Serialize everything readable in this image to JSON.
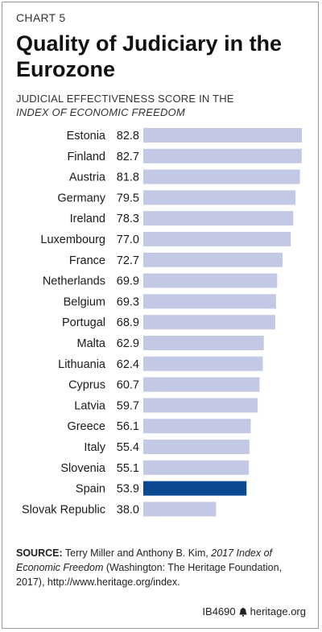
{
  "header": {
    "kicker": "CHART 5",
    "title": "Quality of Judiciary in the Eurozone",
    "subtitle_line1": "JUDICIAL EFFECTIVENESS SCORE IN THE",
    "subtitle_line2": "INDEX OF ECONOMIC FREEDOM"
  },
  "colors": {
    "bar": "#c3c9e4",
    "highlight": "#0b4a93",
    "text": "#1a1a1a"
  },
  "chart_data": {
    "type": "bar",
    "orientation": "horizontal",
    "title": "Quality of Judiciary in the Eurozone",
    "subtitle": "JUDICIAL EFFECTIVENESS SCORE IN THE INDEX OF ECONOMIC FREEDOM",
    "xlabel": "",
    "ylabel": "",
    "xlim": [
      0,
      82.8
    ],
    "grid": false,
    "highlight": "Spain",
    "categories": [
      "Estonia",
      "Finland",
      "Austria",
      "Germany",
      "Ireland",
      "Luxembourg",
      "France",
      "Netherlands",
      "Belgium",
      "Portugal",
      "Malta",
      "Lithuania",
      "Cyprus",
      "Latvia",
      "Greece",
      "Italy",
      "Slovenia",
      "Spain",
      "Slovak Republic"
    ],
    "values": [
      82.8,
      82.7,
      81.8,
      79.5,
      78.3,
      77.0,
      72.7,
      69.9,
      69.3,
      68.9,
      62.9,
      62.4,
      60.7,
      59.7,
      56.1,
      55.4,
      55.1,
      53.9,
      38.0
    ],
    "value_labels": [
      "82.8",
      "82.7",
      "81.8",
      "79.5",
      "78.3",
      "77.0",
      "72.7",
      "69.9",
      "69.3",
      "68.9",
      "62.9",
      "62.4",
      "60.7",
      "59.7",
      "56.1",
      "55.4",
      "55.1",
      "53.9",
      "38.0"
    ]
  },
  "source": {
    "label": "SOURCE:",
    "text_a": "Terry Miller and Anthony B. Kim,",
    "text_italic": "2017 Index of Economic Freedom",
    "text_b": "(Washington: The Heritage Foundation, 2017), http://www.heritage.org/index."
  },
  "footer": {
    "id": "IB4690",
    "site": "heritage.org"
  }
}
